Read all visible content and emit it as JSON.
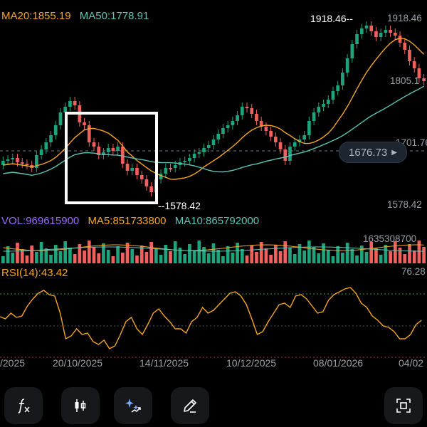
{
  "legends": {
    "ma20": "MA20:1855.19",
    "ma50": "MA50:1778.91",
    "vol": "VOL:969615900",
    "ma5": "MA5:851733800",
    "ma10": "MA10:865792000",
    "rsi": "RSI(14):43.42"
  },
  "colors": {
    "up": "#1ea37c",
    "down": "#f0605d",
    "ma20": "#f5a623",
    "ma50": "#5ec4b6",
    "vol_label": "#9b6bff",
    "rsi": "#f5a623",
    "selection_box": "#ffffff"
  },
  "price_axis": {
    "top_label": "1918.46",
    "mid_label": "1805.1",
    "low_label": "1701.76",
    "bottom_label": "1578.42",
    "current_price": "1676.73"
  },
  "marks": {
    "high_label": "1918.46",
    "low_label": "1578.42"
  },
  "volume_axis": {
    "top_label": "1635308700"
  },
  "rsi_axis": {
    "top_label": "76.28"
  },
  "x_dates": [
    "/2025",
    "20/10/2025",
    "14/11/2025",
    "10/12/2025",
    "08/01/2026",
    "04/02"
  ],
  "toolbar": {
    "buttons": [
      {
        "name": "indicator-button",
        "icon": "function-icon"
      },
      {
        "name": "chart-type-button",
        "icon": "candlestick-icon"
      },
      {
        "name": "ai-tools-button",
        "icon": "sparkle-icon"
      },
      {
        "name": "draw-button",
        "icon": "pencil-icon"
      },
      {
        "name": "screenshot-button",
        "icon": "scan-icon"
      }
    ]
  },
  "chart_data": {
    "type": "candlestick",
    "date_range": "2025 - 04/02",
    "price_high": 1918.46,
    "price_low": 1578.42,
    "current_price": 1676.73,
    "ma20": 1855.19,
    "ma50": 1778.91,
    "volume": 969615900,
    "vol_ma5": 851733800,
    "vol_ma10": 865792000,
    "rsi14": 43.42,
    "rsi_max_label": 76.28
  }
}
